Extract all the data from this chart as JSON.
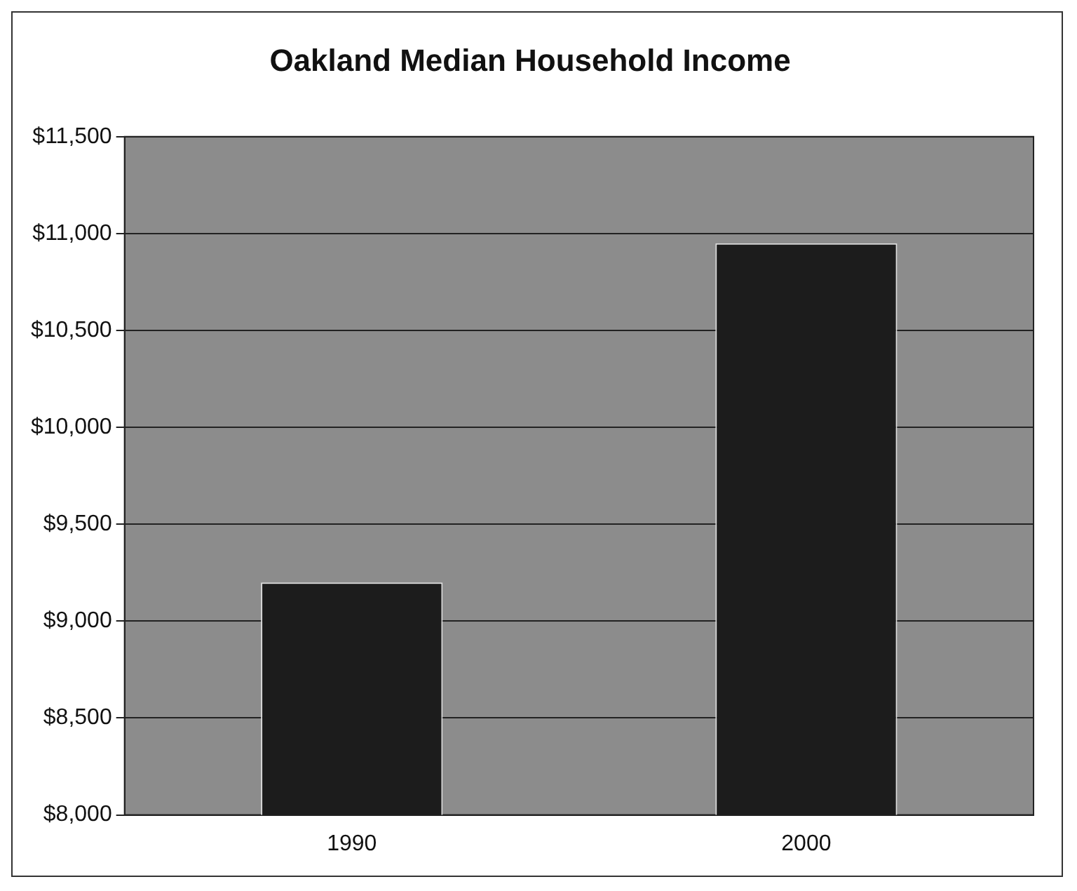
{
  "chart_data": {
    "type": "bar",
    "title": "Oakland Median Household Income",
    "categories": [
      "1990",
      "2000"
    ],
    "values": [
      9200,
      10950
    ],
    "color": "#1c1c1c",
    "ylim": [
      8000,
      11500
    ],
    "yticks": [
      {
        "value": 8000,
        "label": "$8,000"
      },
      {
        "value": 8500,
        "label": "$8,500"
      },
      {
        "value": 9000,
        "label": "$9,000"
      },
      {
        "value": 9500,
        "label": "$9,500"
      },
      {
        "value": 10000,
        "label": "$10,000"
      },
      {
        "value": 10500,
        "label": "$10,500"
      },
      {
        "value": 11000,
        "label": "$11,000"
      },
      {
        "value": 11500,
        "label": "$11,500"
      }
    ],
    "grid": "y",
    "legend": false
  }
}
